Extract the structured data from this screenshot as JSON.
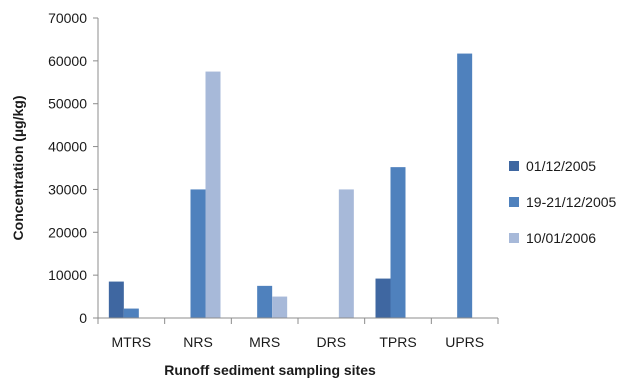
{
  "chart_data": {
    "type": "bar",
    "title": "",
    "xlabel": "Runoff sediment sampling sites",
    "ylabel": "Concentration (µg/kg)",
    "categories": [
      "MTRS",
      "NRS",
      "MRS",
      "DRS",
      "TPRS",
      "UPRS"
    ],
    "series": [
      {
        "name": "01/12/2005",
        "color": "#3f67a1",
        "values": [
          8500,
          0,
          0,
          0,
          9200,
          0
        ]
      },
      {
        "name": "19-21/12/2005",
        "color": "#4f81bd",
        "values": [
          2200,
          30000,
          7500,
          0,
          35200,
          61700
        ]
      },
      {
        "name": "10/01/2006",
        "color": "#a7b9d9",
        "values": [
          0,
          57500,
          5000,
          30000,
          0,
          0
        ]
      }
    ],
    "ylim": [
      0,
      70000
    ],
    "yticks": [
      "0",
      "10000",
      "20000",
      "30000",
      "40000",
      "50000",
      "60000",
      "70000"
    ],
    "grid": false,
    "legend_position": "right"
  }
}
